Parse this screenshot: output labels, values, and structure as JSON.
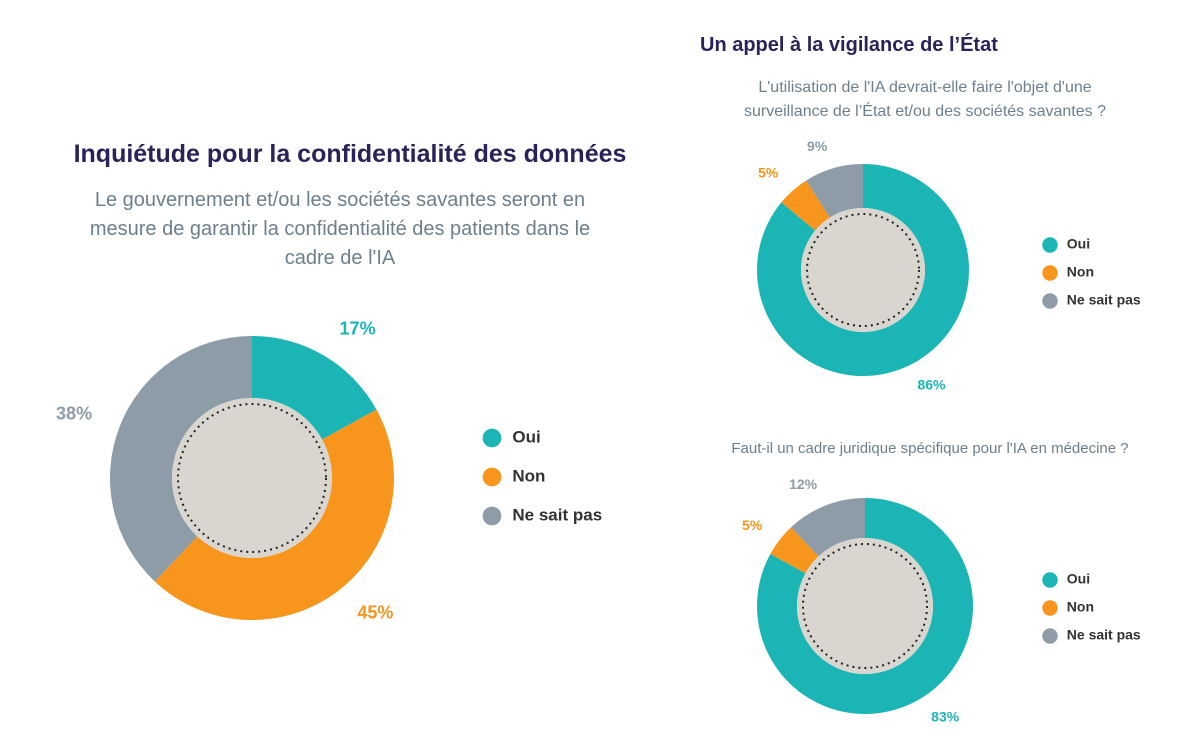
{
  "section_title": "Un appel à la vigilance de l’État",
  "chart_data": [
    {
      "type": "pie",
      "title": "Inquiétude pour la confidentialité des données",
      "subtitle": "Le gouvernement et/ou les sociétés savantes seront en mesure de garantir la confidentialité des patients dans le cadre de l'IA",
      "categories": [
        "Oui",
        "Non",
        "Ne sait pas"
      ],
      "values": [
        17,
        45,
        38
      ],
      "value_labels": [
        "17%",
        "45%",
        "38%"
      ],
      "colors": [
        "#1cb5b5",
        "#f7951d",
        "#8d9ca6"
      ]
    },
    {
      "type": "pie",
      "subtitle": "L'utilisation de l'IA devrait-elle faire l'objet d'une surveillance de l’État et/ou des sociétés savantes ?",
      "categories": [
        "Oui",
        "Non",
        "Ne sait pas"
      ],
      "values": [
        86,
        5,
        9
      ],
      "value_labels": [
        "86%",
        "5%",
        "9%"
      ],
      "colors": [
        "#1cb5b5",
        "#f7951d",
        "#8d9ca6"
      ]
    },
    {
      "type": "pie",
      "subtitle": "Faut-il un cadre juridique spécifique pour l'IA en médecine ?",
      "categories": [
        "Oui",
        "Non",
        "Ne sait pas"
      ],
      "values": [
        83,
        5,
        12
      ],
      "value_labels": [
        "83%",
        "5%",
        "12%"
      ],
      "colors": [
        "#1cb5b5",
        "#f7951d",
        "#8d9ca6"
      ]
    }
  ]
}
